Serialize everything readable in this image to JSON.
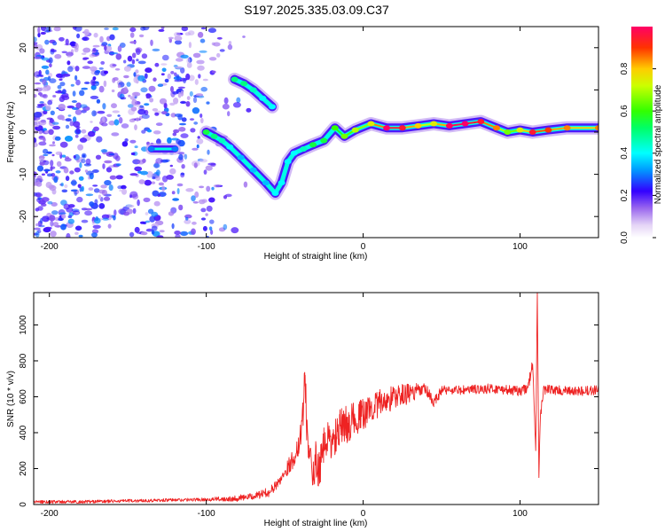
{
  "title": "S197.2025.335.03.09.C37",
  "chart_data": [
    {
      "type": "heatmap",
      "name": "spectrogram",
      "xlabel": "Height of straight line (km)",
      "ylabel": "Frequency (Hz)",
      "xlim": [
        -210,
        150
      ],
      "ylim": [
        -25,
        25
      ],
      "xticks": [
        -200,
        -100,
        0,
        100
      ],
      "yticks": [
        -20,
        -10,
        0,
        10,
        20
      ],
      "colorbar": {
        "label": "Normalized spectral amplitude",
        "range": [
          0,
          1
        ],
        "ticks": [
          0.0,
          0.2,
          0.4,
          0.6,
          0.8
        ],
        "tick_labels": [
          "0.0",
          "0.2",
          "0.4",
          "0.6",
          "0.8"
        ]
      },
      "noise_region": {
        "x_from": -210,
        "x_to": -90,
        "amplitude": 0.3
      },
      "echo_trace": [
        [
          -100,
          0.0,
          0.5
        ],
        [
          -95,
          -1.0,
          0.45
        ],
        [
          -90,
          -2.0,
          0.4
        ],
        [
          -85,
          -3.5,
          0.35
        ],
        [
          -78,
          -6.0,
          0.3
        ],
        [
          -70,
          -9.0,
          0.3
        ],
        [
          -62,
          -12.0,
          0.3
        ],
        [
          -56,
          -14.5,
          0.35
        ],
        [
          -52,
          -12.0,
          0.35
        ],
        [
          -48,
          -7.0,
          0.35
        ],
        [
          -44,
          -5.0,
          0.35
        ],
        [
          -38,
          -4.0,
          0.4
        ],
        [
          -32,
          -3.0,
          0.5
        ],
        [
          -25,
          -2.0,
          0.5
        ],
        [
          -18,
          1.0,
          0.55
        ],
        [
          -12,
          -1.0,
          0.6
        ],
        [
          -5,
          0.5,
          0.65
        ],
        [
          5,
          2.0,
          0.7
        ],
        [
          15,
          1.0,
          1.0
        ],
        [
          25,
          1.0,
          0.9
        ],
        [
          35,
          1.5,
          0.75
        ],
        [
          45,
          2.0,
          0.7
        ],
        [
          55,
          1.5,
          0.95
        ],
        [
          65,
          2.0,
          1.0
        ],
        [
          75,
          2.5,
          0.9
        ],
        [
          85,
          1.0,
          0.8
        ],
        [
          92,
          0.0,
          0.6
        ],
        [
          100,
          0.5,
          0.7
        ],
        [
          108,
          0.0,
          0.9
        ],
        [
          118,
          0.5,
          0.85
        ],
        [
          130,
          1.0,
          0.8
        ],
        [
          150,
          1.0,
          0.8
        ]
      ],
      "secondary_trace": [
        [
          -82,
          12.5,
          0.45
        ],
        [
          -76,
          11.5,
          0.45
        ],
        [
          -70,
          10.0,
          0.4
        ],
        [
          -64,
          8.0,
          0.35
        ],
        [
          -58,
          6.0,
          0.35
        ]
      ],
      "artifact_trace": [
        [
          -135,
          -4.0,
          0.25
        ],
        [
          -120,
          -4.0,
          0.25
        ]
      ]
    },
    {
      "type": "line",
      "name": "snr",
      "xlabel": "Height of straight line (km)",
      "ylabel": "SNR (10 * v/v)",
      "xlim": [
        -210,
        150
      ],
      "ylim": [
        0,
        1180
      ],
      "xticks": [
        -200,
        -100,
        0,
        100
      ],
      "yticks": [
        0,
        200,
        400,
        600,
        800,
        1000
      ],
      "color": "#ee2222",
      "series": [
        {
          "name": "SNR",
          "x": [
            -210,
            -180,
            -150,
            -120,
            -100,
            -80,
            -70,
            -60,
            -55,
            -50,
            -45,
            -42,
            -40,
            -38,
            -37,
            -36,
            -34,
            -32,
            -30,
            -28,
            -25,
            -22,
            -20,
            -15,
            -10,
            -5,
            0,
            5,
            10,
            15,
            20,
            30,
            40,
            45,
            50,
            60,
            70,
            80,
            90,
            100,
            105,
            108,
            110,
            111,
            112,
            113,
            115,
            120,
            130,
            140,
            150
          ],
          "y": [
            15,
            15,
            20,
            25,
            28,
            35,
            45,
            70,
            110,
            180,
            250,
            300,
            400,
            560,
            720,
            420,
            300,
            120,
            250,
            200,
            320,
            380,
            330,
            420,
            450,
            480,
            500,
            540,
            560,
            580,
            600,
            620,
            640,
            560,
            640,
            635,
            640,
            645,
            640,
            630,
            650,
            780,
            300,
            1180,
            150,
            500,
            640,
            640,
            630,
            630,
            640
          ],
          "noise": [
            1,
            1,
            1,
            1,
            1,
            2,
            2,
            3,
            3,
            4,
            6,
            8,
            10,
            12,
            12,
            12,
            12,
            12,
            14,
            12,
            12,
            10,
            12,
            12,
            12,
            10,
            10,
            9,
            9,
            8,
            8,
            6,
            4,
            4,
            3,
            3,
            3,
            3,
            3,
            3,
            3,
            4,
            0,
            0,
            0,
            4,
            3,
            3,
            3,
            3,
            3
          ],
          "noise_amplitude": 9
        }
      ]
    }
  ]
}
